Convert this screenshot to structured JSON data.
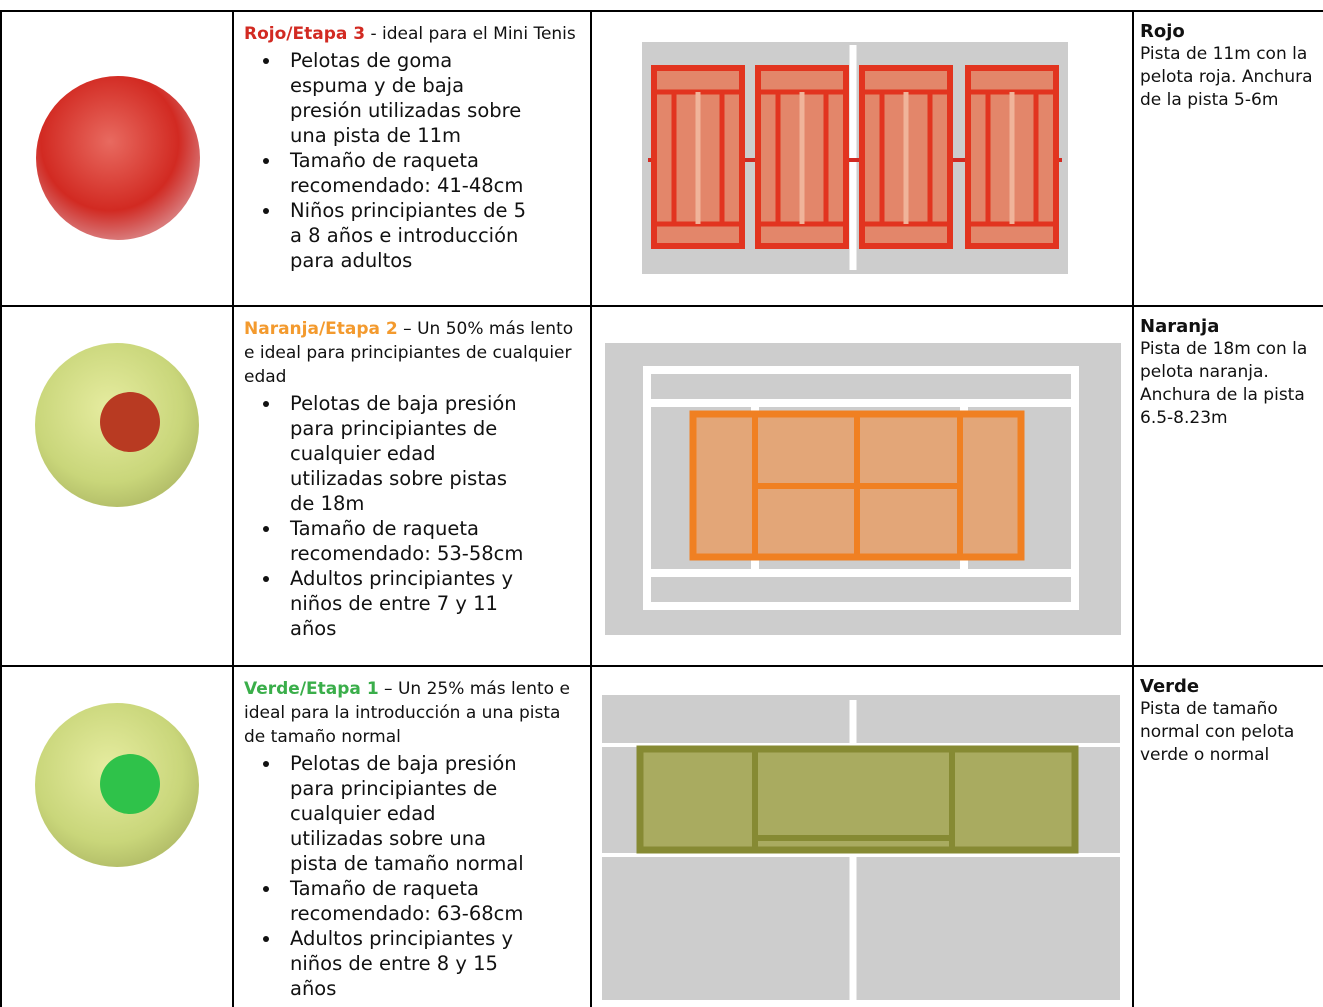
{
  "rows": [
    {
      "title": "Rojo/Etapa 3",
      "intro": " - ideal para el Mini Tenis",
      "bullets": [
        "Pelotas de goma espuma y de baja presión utilizadas sobre una pista de 11m",
        "Tamaño de raqueta recomendado: 41-48cm",
        "Niños principiantes de 5 a 8 años e introducción para adultos"
      ],
      "side_title": "Rojo",
      "side_text": "Pista de 11m con la pelota roja. Anchura de la pista 5-6m"
    },
    {
      "title": "Naranja/Etapa 2",
      "intro": " – Un 50% más lento e ideal para principiantes de cualquier edad",
      "bullets": [
        "Pelotas de baja presión para principiantes de cualquier edad utilizadas sobre pistas de 18m",
        "Tamaño de raqueta recomendado: 53-58cm",
        "Adultos principiantes y niños de entre 7 y 11 años"
      ],
      "side_title": "Naranja",
      "side_text": "Pista de 18m con la pelota naranja. Anchura de la pista 6.5-8.23m"
    },
    {
      "title": "Verde/Etapa 1",
      "intro": " – Un 25% más lento e ideal para la introducción a una pista de tamaño normal",
      "bullets": [
        "Pelotas de baja presión para principiantes de cualquier edad utilizadas sobre una pista de tamaño normal",
        "Tamaño de raqueta recomendado: 63-68cm",
        "Adultos principiantes y niños de entre 8 y 15 años"
      ],
      "side_title": "Verde",
      "side_text": "Pista de tamaño normal con pelota verde o normal"
    }
  ]
}
